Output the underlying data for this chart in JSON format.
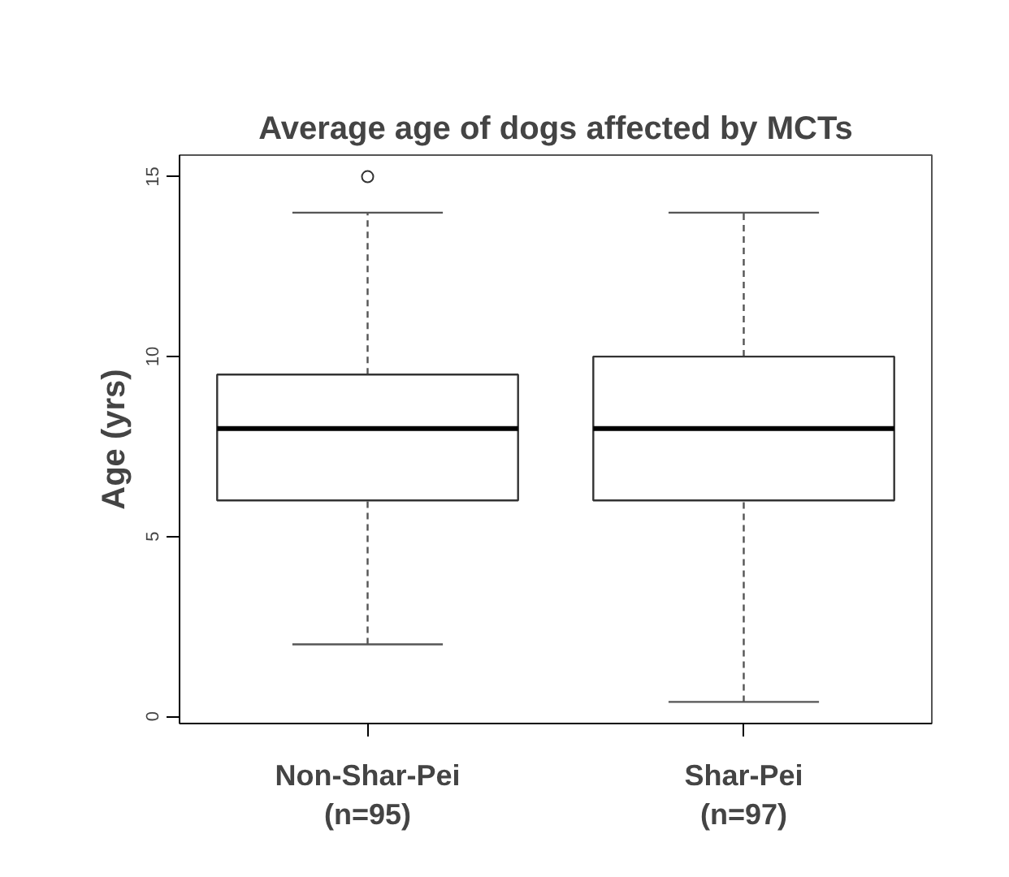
{
  "chart_data": {
    "type": "box",
    "title": "Average age of dogs affected by MCTs",
    "ylabel": "Age (yrs)",
    "categories": [
      "Non-Shar-Pei\n(n=95)",
      "Shar-Pei\n(n=97)"
    ],
    "boxes": [
      {
        "low": 2,
        "q1": 6,
        "median": 8,
        "q3": 9.5,
        "high": 14,
        "outliers": [
          15
        ]
      },
      {
        "low": 0.4,
        "q1": 6,
        "median": 8,
        "q3": 10,
        "high": 14
      }
    ],
    "ylim": [
      -0.2,
      15.6
    ],
    "yticks": [
      0,
      5,
      10,
      15
    ],
    "grid": false
  }
}
